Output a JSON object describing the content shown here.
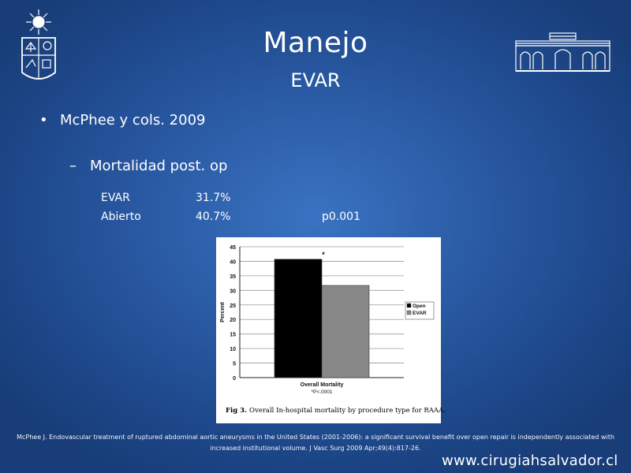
{
  "slide": {
    "title": "Manejo",
    "subtitle": "EVAR",
    "bullet_level1": "McPhee y cols. 2009",
    "bullet_level2": "Mortalidad post. op",
    "stats": [
      {
        "label": "EVAR",
        "value": "31.7%",
        "pvalue": ""
      },
      {
        "label": "Abierto",
        "value": "40.7%",
        "pvalue": "p0.001"
      }
    ],
    "reference": "McPhee J. Endovascular treatment of ruptured abdominal aortic aneurysms in the United States (2001-2006): a significant survival benefit over open repair is independently associated with increased institutional volume. J Vasc Surg 2009 Apr;49(4):817-26.",
    "website": "www.cirugiahsalvador.cl"
  },
  "chart_data": {
    "type": "bar",
    "categories": [
      "Overall Mortality"
    ],
    "series": [
      {
        "name": "Open",
        "values": [
          40.7
        ],
        "color": "#000000"
      },
      {
        "name": "EVAR",
        "values": [
          31.7
        ],
        "color": "#888888"
      }
    ],
    "ylabel": "Percent",
    "xlabel": "Overall Mortality",
    "footnote": "*P<.0001",
    "annotation": "*",
    "ylim": [
      0,
      45
    ],
    "yticks": [
      "0",
      "5",
      "10",
      "15",
      "20",
      "25",
      "30",
      "35",
      "40",
      "45"
    ],
    "grid": true,
    "legend_position": "right",
    "caption_prefix": "Fig 3.",
    "caption_text": "Overall In-hospital mortality by procedure type for RAAA."
  }
}
